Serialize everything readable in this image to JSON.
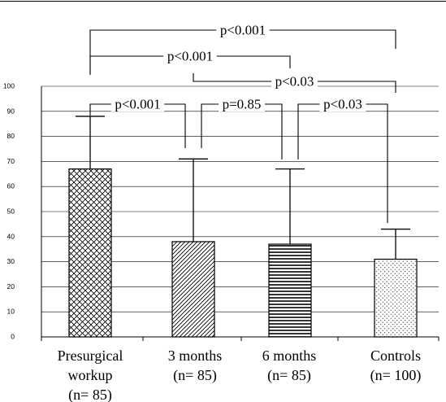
{
  "chart_data": {
    "type": "bar",
    "categories": [
      [
        "Presurgical",
        "workup",
        "(n= 85)"
      ],
      [
        "3 months",
        "(n= 85)"
      ],
      [
        "6 months",
        "(n= 85)"
      ],
      [
        "Controls",
        "(n= 100)"
      ]
    ],
    "values": [
      67,
      38,
      37,
      31
    ],
    "error_upper": [
      88,
      71,
      67,
      43
    ],
    "ylim": [
      0,
      100
    ],
    "yticks": [
      0,
      10,
      20,
      30,
      40,
      50,
      60,
      70,
      80,
      90,
      100
    ],
    "grid": true,
    "fill_patterns": [
      "crosshatch",
      "diagonal",
      "horizontal",
      "dots"
    ],
    "comparisons": [
      {
        "from": 0,
        "to": 3,
        "label": "p<0.001"
      },
      {
        "from": 0,
        "to": 2,
        "label": "p<0.001"
      },
      {
        "from": 1,
        "to": 3,
        "label": "p<0.03"
      },
      {
        "from": 0,
        "to": 1,
        "label": "p<0.001"
      },
      {
        "from": 1,
        "to": 2,
        "label": "p=0.85"
      },
      {
        "from": 2,
        "to": 3,
        "label": "p<0.03"
      }
    ]
  }
}
